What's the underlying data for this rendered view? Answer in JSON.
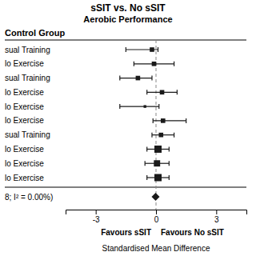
{
  "chart_data": {
    "type": "forest",
    "title": "sSIT vs. No sSIT",
    "subtitle": "Aerobic Performance",
    "column_header": "Control Group",
    "xlabel": "Standardised Mean Difference",
    "xlim": [
      -4.5,
      4.5
    ],
    "xticks": [
      -3,
      0,
      3
    ],
    "favour_labels": [
      "Favours sSIT",
      "Favours No sSIT"
    ],
    "overall_label": "8; I² = 0.00%)",
    "categories": [
      "sual Training",
      "lo Exercise",
      "sual Training",
      "lo Exercise",
      "lo Exercise",
      "lo Exercise",
      "sual Training",
      "lo Exercise",
      "lo Exercise",
      "lo Exercise"
    ],
    "values": [
      -0.2,
      -0.1,
      -0.9,
      0.3,
      -0.55,
      0.35,
      0.25,
      0.1,
      0.05,
      0.1
    ],
    "ci_low": [
      -1.5,
      -1.1,
      -1.8,
      -0.45,
      -1.8,
      -0.15,
      -0.2,
      -0.45,
      -0.55,
      -0.45
    ],
    "ci_high": [
      0.1,
      0.9,
      -0.2,
      1.05,
      0.15,
      1.5,
      0.9,
      0.65,
      0.65,
      0.65
    ],
    "sizes": [
      5,
      5,
      5,
      5,
      3,
      5,
      5,
      8,
      7,
      8
    ],
    "overall": {
      "value": -0.02,
      "ci_low": -0.22,
      "ci_high": 0.18
    },
    "reference_line": 0,
    "color": "#1a1a1a"
  }
}
